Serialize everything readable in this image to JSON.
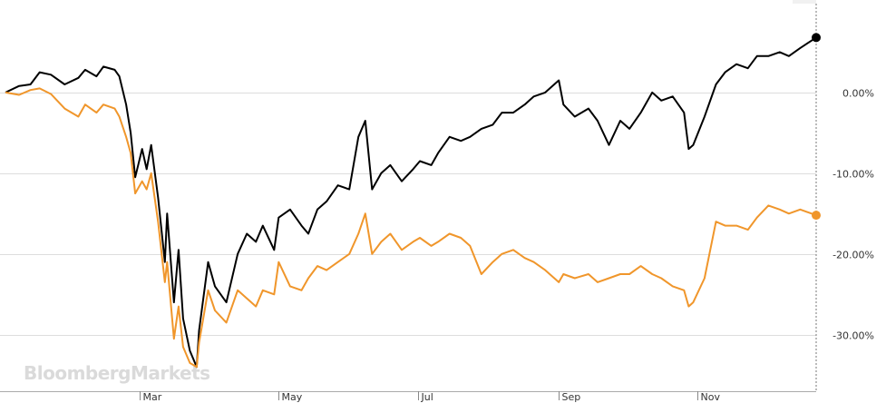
{
  "watermark": "BloombergMarkets",
  "chart_data": {
    "type": "line",
    "y_unit": "%",
    "ylim": [
      -37,
      11
    ],
    "y_ticks": [
      0,
      -10,
      -20,
      -30
    ],
    "y_tick_labels": [
      "0.00%",
      "-10.00%",
      "-20.00%",
      "-30.00%"
    ],
    "x_tick_labels": [
      "Mar",
      "May",
      "Jul",
      "Sep",
      "Nov"
    ],
    "x_range": [
      "2020-01-02",
      "2020-12-23"
    ],
    "x_ticks": [
      "2020-03-01",
      "2020-05-01",
      "2020-07-01",
      "2020-09-01",
      "2020-11-01"
    ],
    "grid": true,
    "legend": "none",
    "series": [
      {
        "color": "#000000",
        "points": [
          [
            "2020-01-02",
            0.0
          ],
          [
            "2020-01-08",
            0.8
          ],
          [
            "2020-01-13",
            1.0
          ],
          [
            "2020-01-17",
            2.5
          ],
          [
            "2020-01-22",
            2.2
          ],
          [
            "2020-01-28",
            1.0
          ],
          [
            "2020-02-03",
            1.8
          ],
          [
            "2020-02-06",
            2.8
          ],
          [
            "2020-02-11",
            2.0
          ],
          [
            "2020-02-14",
            3.2
          ],
          [
            "2020-02-19",
            2.8
          ],
          [
            "2020-02-21",
            2.0
          ],
          [
            "2020-02-24",
            -1.5
          ],
          [
            "2020-02-26",
            -5.0
          ],
          [
            "2020-02-28",
            -10.5
          ],
          [
            "2020-03-02",
            -7.0
          ],
          [
            "2020-03-04",
            -9.5
          ],
          [
            "2020-03-06",
            -6.5
          ],
          [
            "2020-03-09",
            -13.0
          ],
          [
            "2020-03-12",
            -21.0
          ],
          [
            "2020-03-13",
            -15.0
          ],
          [
            "2020-03-16",
            -26.0
          ],
          [
            "2020-03-18",
            -19.5
          ],
          [
            "2020-03-20",
            -28.0
          ],
          [
            "2020-03-23",
            -32.0
          ],
          [
            "2020-03-26",
            -34.0
          ],
          [
            "2020-03-27",
            -29.5
          ],
          [
            "2020-03-31",
            -21.0
          ],
          [
            "2020-04-03",
            -24.0
          ],
          [
            "2020-04-08",
            -26.0
          ],
          [
            "2020-04-13",
            -20.0
          ],
          [
            "2020-04-17",
            -17.5
          ],
          [
            "2020-04-21",
            -18.5
          ],
          [
            "2020-04-24",
            -16.5
          ],
          [
            "2020-04-29",
            -19.5
          ],
          [
            "2020-05-01",
            -15.5
          ],
          [
            "2020-05-06",
            -14.5
          ],
          [
            "2020-05-11",
            -16.5
          ],
          [
            "2020-05-14",
            -17.5
          ],
          [
            "2020-05-18",
            -14.5
          ],
          [
            "2020-05-22",
            -13.5
          ],
          [
            "2020-05-27",
            -11.5
          ],
          [
            "2020-06-01",
            -12.0
          ],
          [
            "2020-06-05",
            -5.5
          ],
          [
            "2020-06-08",
            -3.5
          ],
          [
            "2020-06-11",
            -12.0
          ],
          [
            "2020-06-15",
            -10.0
          ],
          [
            "2020-06-19",
            -9.0
          ],
          [
            "2020-06-24",
            -11.0
          ],
          [
            "2020-06-29",
            -9.5
          ],
          [
            "2020-07-02",
            -8.5
          ],
          [
            "2020-07-07",
            -9.0
          ],
          [
            "2020-07-10",
            -7.5
          ],
          [
            "2020-07-15",
            -5.5
          ],
          [
            "2020-07-20",
            -6.0
          ],
          [
            "2020-07-24",
            -5.5
          ],
          [
            "2020-07-29",
            -4.5
          ],
          [
            "2020-08-03",
            -4.0
          ],
          [
            "2020-08-07",
            -2.5
          ],
          [
            "2020-08-12",
            -2.5
          ],
          [
            "2020-08-17",
            -1.5
          ],
          [
            "2020-08-21",
            -0.5
          ],
          [
            "2020-08-26",
            0.0
          ],
          [
            "2020-09-01",
            1.5
          ],
          [
            "2020-09-03",
            -1.5
          ],
          [
            "2020-09-08",
            -3.0
          ],
          [
            "2020-09-14",
            -2.0
          ],
          [
            "2020-09-18",
            -3.5
          ],
          [
            "2020-09-23",
            -6.5
          ],
          [
            "2020-09-28",
            -3.5
          ],
          [
            "2020-10-02",
            -4.5
          ],
          [
            "2020-10-07",
            -2.5
          ],
          [
            "2020-10-12",
            0.0
          ],
          [
            "2020-10-16",
            -1.0
          ],
          [
            "2020-10-21",
            -0.5
          ],
          [
            "2020-10-26",
            -2.5
          ],
          [
            "2020-10-28",
            -7.0
          ],
          [
            "2020-10-30",
            -6.5
          ],
          [
            "2020-11-04",
            -3.0
          ],
          [
            "2020-11-09",
            1.0
          ],
          [
            "2020-11-13",
            2.5
          ],
          [
            "2020-11-18",
            3.5
          ],
          [
            "2020-11-23",
            3.0
          ],
          [
            "2020-11-27",
            4.5
          ],
          [
            "2020-12-02",
            4.5
          ],
          [
            "2020-12-07",
            5.0
          ],
          [
            "2020-12-11",
            4.5
          ],
          [
            "2020-12-16",
            5.5
          ],
          [
            "2020-12-23",
            6.8
          ]
        ]
      },
      {
        "color": "#f0962b",
        "points": [
          [
            "2020-01-02",
            0.0
          ],
          [
            "2020-01-08",
            -0.3
          ],
          [
            "2020-01-13",
            0.3
          ],
          [
            "2020-01-17",
            0.5
          ],
          [
            "2020-01-22",
            -0.2
          ],
          [
            "2020-01-28",
            -2.0
          ],
          [
            "2020-02-03",
            -3.0
          ],
          [
            "2020-02-06",
            -1.5
          ],
          [
            "2020-02-11",
            -2.5
          ],
          [
            "2020-02-14",
            -1.5
          ],
          [
            "2020-02-19",
            -2.0
          ],
          [
            "2020-02-21",
            -3.0
          ],
          [
            "2020-02-24",
            -5.5
          ],
          [
            "2020-02-26",
            -7.5
          ],
          [
            "2020-02-28",
            -12.5
          ],
          [
            "2020-03-02",
            -11.0
          ],
          [
            "2020-03-04",
            -12.0
          ],
          [
            "2020-03-06",
            -10.0
          ],
          [
            "2020-03-09",
            -16.0
          ],
          [
            "2020-03-12",
            -23.5
          ],
          [
            "2020-03-13",
            -21.0
          ],
          [
            "2020-03-16",
            -30.5
          ],
          [
            "2020-03-18",
            -26.5
          ],
          [
            "2020-03-20",
            -31.5
          ],
          [
            "2020-03-23",
            -33.5
          ],
          [
            "2020-03-26",
            -34.0
          ],
          [
            "2020-03-27",
            -31.0
          ],
          [
            "2020-03-31",
            -24.5
          ],
          [
            "2020-04-03",
            -27.0
          ],
          [
            "2020-04-08",
            -28.5
          ],
          [
            "2020-04-13",
            -24.5
          ],
          [
            "2020-04-17",
            -25.5
          ],
          [
            "2020-04-21",
            -26.5
          ],
          [
            "2020-04-24",
            -24.5
          ],
          [
            "2020-04-29",
            -25.0
          ],
          [
            "2020-05-01",
            -21.0
          ],
          [
            "2020-05-06",
            -24.0
          ],
          [
            "2020-05-11",
            -24.5
          ],
          [
            "2020-05-14",
            -23.0
          ],
          [
            "2020-05-18",
            -21.5
          ],
          [
            "2020-05-22",
            -22.0
          ],
          [
            "2020-05-27",
            -21.0
          ],
          [
            "2020-06-01",
            -20.0
          ],
          [
            "2020-06-05",
            -17.5
          ],
          [
            "2020-06-08",
            -15.0
          ],
          [
            "2020-06-11",
            -20.0
          ],
          [
            "2020-06-15",
            -18.5
          ],
          [
            "2020-06-19",
            -17.5
          ],
          [
            "2020-06-24",
            -19.5
          ],
          [
            "2020-06-29",
            -18.5
          ],
          [
            "2020-07-02",
            -18.0
          ],
          [
            "2020-07-07",
            -19.0
          ],
          [
            "2020-07-10",
            -18.5
          ],
          [
            "2020-07-15",
            -17.5
          ],
          [
            "2020-07-20",
            -18.0
          ],
          [
            "2020-07-24",
            -19.0
          ],
          [
            "2020-07-29",
            -22.5
          ],
          [
            "2020-08-03",
            -21.0
          ],
          [
            "2020-08-07",
            -20.0
          ],
          [
            "2020-08-12",
            -19.5
          ],
          [
            "2020-08-17",
            -20.5
          ],
          [
            "2020-08-21",
            -21.0
          ],
          [
            "2020-08-26",
            -22.0
          ],
          [
            "2020-09-01",
            -23.5
          ],
          [
            "2020-09-03",
            -22.5
          ],
          [
            "2020-09-08",
            -23.0
          ],
          [
            "2020-09-14",
            -22.5
          ],
          [
            "2020-09-18",
            -23.5
          ],
          [
            "2020-09-23",
            -23.0
          ],
          [
            "2020-09-28",
            -22.5
          ],
          [
            "2020-10-02",
            -22.5
          ],
          [
            "2020-10-07",
            -21.5
          ],
          [
            "2020-10-12",
            -22.5
          ],
          [
            "2020-10-16",
            -23.0
          ],
          [
            "2020-10-21",
            -24.0
          ],
          [
            "2020-10-26",
            -24.5
          ],
          [
            "2020-10-28",
            -26.5
          ],
          [
            "2020-10-30",
            -26.0
          ],
          [
            "2020-11-04",
            -23.0
          ],
          [
            "2020-11-09",
            -16.0
          ],
          [
            "2020-11-13",
            -16.5
          ],
          [
            "2020-11-18",
            -16.5
          ],
          [
            "2020-11-23",
            -17.0
          ],
          [
            "2020-11-27",
            -15.5
          ],
          [
            "2020-12-02",
            -14.0
          ],
          [
            "2020-12-07",
            -14.5
          ],
          [
            "2020-12-11",
            -15.0
          ],
          [
            "2020-12-16",
            -14.5
          ],
          [
            "2020-12-23",
            -15.2
          ]
        ]
      }
    ]
  }
}
